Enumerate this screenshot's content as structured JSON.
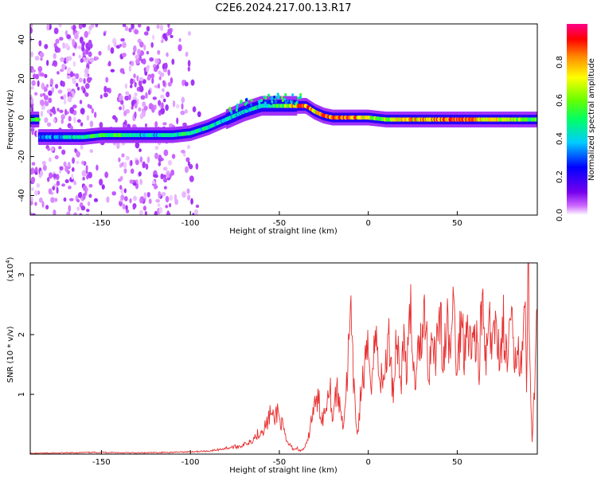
{
  "figure": {
    "title": "C2E6.2024.217.00.13.R17"
  },
  "chart_data": [
    {
      "type": "heatmap",
      "xlabel": "Height of straight line (km)",
      "ylabel": "Frequency (Hz)",
      "xlim": [
        -190,
        95
      ],
      "ylim": [
        -50,
        48
      ],
      "xticks": [
        -150,
        -100,
        -50,
        0,
        50
      ],
      "yticks": [
        -40,
        -20,
        0,
        20,
        40
      ],
      "grid": false,
      "colorbar": {
        "label": "Normalized spectral amplitude",
        "range": [
          0,
          1
        ],
        "ticks": [
          0.0,
          0.2,
          0.4,
          0.6,
          0.8
        ],
        "colors": [
          "#ffffff",
          "#cc66ff",
          "#7700ee",
          "#0000ff",
          "#00ccff",
          "#00ff66",
          "#66ff00",
          "#ffff00",
          "#ff8800",
          "#ff0000",
          "#ff0088"
        ]
      },
      "ridge": [
        {
          "x": -185,
          "y": -10,
          "amp": 0.35
        },
        {
          "x": -170,
          "y": -10,
          "amp": 0.45
        },
        {
          "x": -160,
          "y": -10,
          "amp": 0.5
        },
        {
          "x": -150,
          "y": -9,
          "amp": 0.6
        },
        {
          "x": -140,
          "y": -9,
          "amp": 0.55
        },
        {
          "x": -130,
          "y": -9,
          "amp": 0.45
        },
        {
          "x": -120,
          "y": -9,
          "amp": 0.45
        },
        {
          "x": -110,
          "y": -9,
          "amp": 0.5
        },
        {
          "x": -100,
          "y": -8,
          "amp": 0.5
        },
        {
          "x": -90,
          "y": -5,
          "amp": 0.5
        },
        {
          "x": -80,
          "y": -1,
          "amp": 0.45
        },
        {
          "x": -70,
          "y": 3,
          "amp": 0.45
        },
        {
          "x": -60,
          "y": 6,
          "amp": 0.5
        },
        {
          "x": -50,
          "y": 6,
          "amp": 0.55
        },
        {
          "x": -40,
          "y": 6,
          "amp": 0.85
        },
        {
          "x": -35,
          "y": 6,
          "amp": 0.9
        },
        {
          "x": -30,
          "y": 3,
          "amp": 0.8
        },
        {
          "x": -25,
          "y": 1,
          "amp": 0.85
        },
        {
          "x": -20,
          "y": 0,
          "amp": 0.9
        },
        {
          "x": -10,
          "y": 0,
          "amp": 0.9
        },
        {
          "x": 0,
          "y": 0,
          "amp": 0.7
        },
        {
          "x": 10,
          "y": -1,
          "amp": 0.65
        },
        {
          "x": 20,
          "y": -1,
          "amp": 0.75
        },
        {
          "x": 30,
          "y": -1,
          "amp": 0.8
        },
        {
          "x": 40,
          "y": -1,
          "amp": 0.9
        },
        {
          "x": 50,
          "y": -1,
          "amp": 0.95
        },
        {
          "x": 60,
          "y": -1,
          "amp": 0.85
        },
        {
          "x": 70,
          "y": -1,
          "amp": 0.75
        },
        {
          "x": 80,
          "y": -1,
          "amp": 0.7
        },
        {
          "x": 90,
          "y": -1,
          "amp": 0.6
        }
      ]
    },
    {
      "type": "line",
      "xlabel": "Height of straight line (km)",
      "ylabel": "SNR (10 * v/v)",
      "yscale_label": "(x10",
      "yscale_exponent": "4",
      "yscale_close": ")",
      "xlim": [
        -190,
        95
      ],
      "ylim": [
        0,
        3.2
      ],
      "xticks": [
        -150,
        -100,
        -50,
        0,
        50
      ],
      "yticks": [
        1,
        2,
        3
      ],
      "grid": false,
      "series": [
        {
          "color": "#e83030",
          "x": [
            -190,
            -170,
            -150,
            -130,
            -110,
            -100,
            -90,
            -85,
            -80,
            -75,
            -70,
            -65,
            -60,
            -57,
            -55,
            -53,
            -51,
            -50,
            -48,
            -46,
            -44,
            -42,
            -40,
            -38,
            -36,
            -34,
            -32,
            -30,
            -28,
            -26,
            -24,
            -22,
            -20,
            -18,
            -16,
            -14,
            -12,
            -10,
            -8,
            -6,
            -4,
            -2,
            0,
            2,
            4,
            6,
            8,
            10,
            12,
            14,
            16,
            18,
            20,
            22,
            24,
            26,
            28,
            30,
            32,
            34,
            36,
            38,
            40,
            42,
            44,
            46,
            48,
            50,
            52,
            54,
            56,
            58,
            60,
            62,
            64,
            66,
            68,
            70,
            72,
            74,
            76,
            78,
            80,
            82,
            84,
            86,
            88,
            89,
            90,
            92,
            95
          ],
          "y": [
            0.01,
            0.02,
            0.03,
            0.02,
            0.03,
            0.04,
            0.05,
            0.07,
            0.1,
            0.12,
            0.15,
            0.25,
            0.4,
            0.5,
            0.7,
            0.55,
            0.75,
            0.6,
            0.45,
            0.2,
            0.15,
            0.08,
            0.1,
            0.05,
            0.1,
            0.2,
            0.6,
            0.8,
            0.9,
            0.6,
            0.75,
            1.3,
            0.6,
            1.1,
            0.8,
            0.5,
            1.2,
            2.3,
            1.0,
            0.3,
            1.1,
            1.4,
            1.7,
            1.3,
            2.0,
            1.5,
            1.1,
            1.6,
            1.9,
            1.0,
            2.1,
            1.2,
            1.8,
            1.5,
            2.4,
            1.1,
            2.1,
            1.7,
            2.5,
            1.3,
            2.2,
            1.6,
            2.6,
            1.4,
            2.2,
            1.7,
            2.5,
            1.3,
            2.3,
            1.8,
            2.4,
            1.6,
            2.2,
            1.4,
            2.5,
            1.5,
            2.1,
            1.7,
            2.3,
            1.6,
            2.2,
            1.4,
            2.3,
            1.5,
            2.0,
            1.6,
            2.4,
            1.2,
            3.2,
            0.15,
            2.2
          ]
        }
      ]
    }
  ]
}
